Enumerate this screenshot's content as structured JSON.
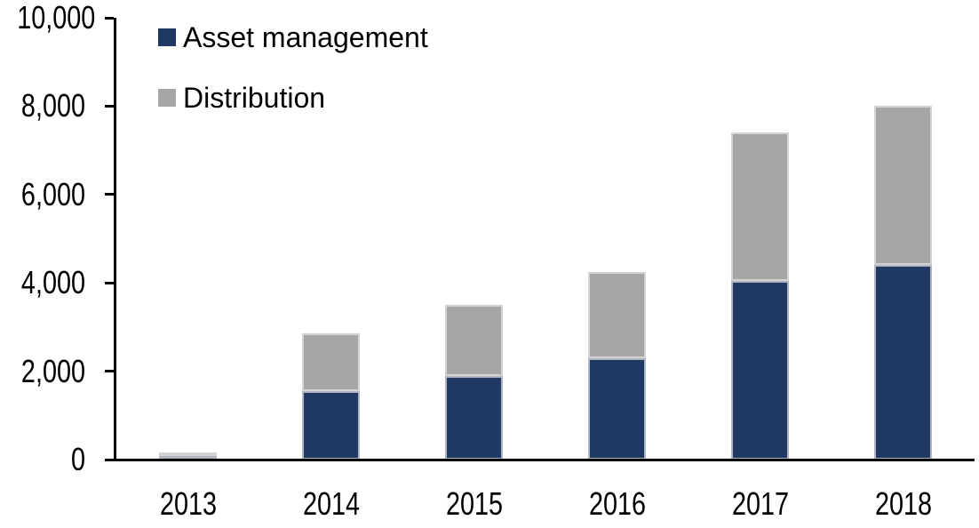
{
  "chart_data": {
    "type": "bar",
    "stacked": true,
    "title": "",
    "xlabel": "",
    "ylabel": "",
    "categories": [
      "2013",
      "2014",
      "2015",
      "2016",
      "2017",
      "2018"
    ],
    "series": [
      {
        "name": "Asset management",
        "color": "#1F3864",
        "values": [
          80,
          1550,
          1900,
          2300,
          4050,
          4400
        ]
      },
      {
        "name": "Distribution",
        "color": "#A6A6A6",
        "values": [
          90,
          1300,
          1600,
          1950,
          3350,
          3600
        ]
      }
    ],
    "totals": [
      170,
      2850,
      3500,
      4250,
      7400,
      8000
    ],
    "ylim": [
      0,
      10000
    ],
    "ytick_interval": 2000,
    "ytick_labels": [
      "0",
      "2,000",
      "4,000",
      "6,000",
      "8,000",
      "10,000"
    ],
    "grid": false,
    "legend_position": "inside-top-left",
    "colors": {
      "axis": "#000000",
      "bar_edge": "#E1E1E1",
      "background": "#FFFFFF"
    }
  }
}
